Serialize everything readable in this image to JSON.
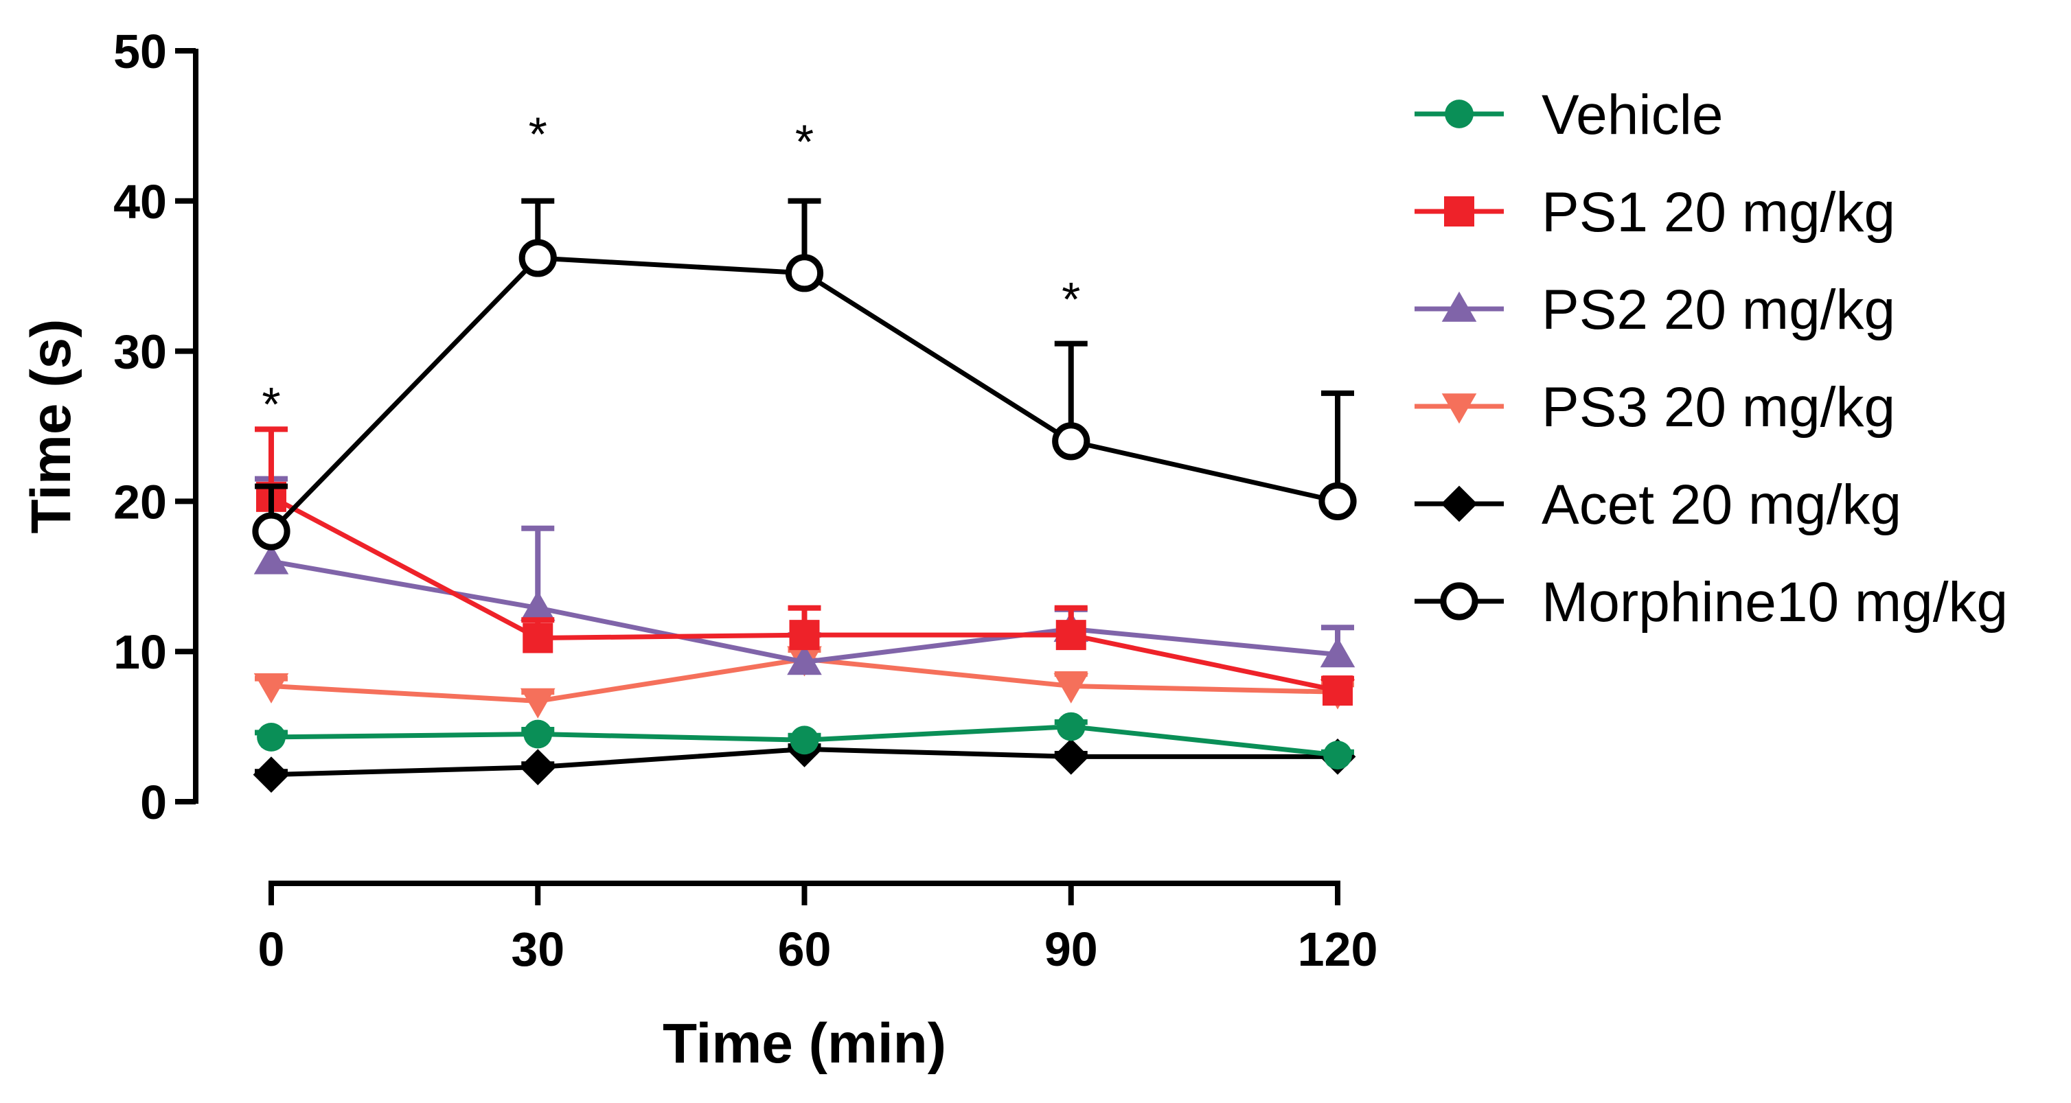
{
  "chart_data": {
    "type": "line",
    "title": "",
    "xlabel": "Time (min)",
    "ylabel": "Time (s)",
    "x": [
      0,
      30,
      60,
      90,
      120
    ],
    "xlim": [
      0,
      120
    ],
    "ylim": [
      0,
      50
    ],
    "xticks": [
      "0",
      "30",
      "60",
      "90",
      "120"
    ],
    "yticks": [
      "0",
      "10",
      "20",
      "30",
      "40",
      "50"
    ],
    "grid": false,
    "legend_position": "right",
    "series": [
      {
        "name": "Vehicle",
        "color": "#0a8f57",
        "marker": "circle-filled",
        "values": [
          4.3,
          4.5,
          4.1,
          5.0,
          3.1
        ],
        "errors": [
          0.3,
          0.3,
          0.3,
          0.3,
          0.2
        ]
      },
      {
        "name": "PS1 20 mg/kg",
        "color": "#ee2229",
        "marker": "square",
        "values": [
          20.3,
          10.9,
          11.1,
          11.1,
          7.4
        ],
        "errors": [
          4.5,
          1.2,
          1.8,
          1.8,
          0.8
        ]
      },
      {
        "name": "PS2 20 mg/kg",
        "color": "#8064a9",
        "marker": "triangle-up",
        "values": [
          16.0,
          12.9,
          9.3,
          11.5,
          9.8
        ],
        "errors": [
          5.5,
          5.3,
          1.8,
          1.3,
          1.8
        ]
      },
      {
        "name": "PS3 20 mg/kg",
        "color": "#f5705b",
        "marker": "triangle-down",
        "values": [
          7.7,
          6.7,
          9.5,
          7.7,
          7.3
        ],
        "errors": [
          0.5,
          0.6,
          0.6,
          0.8,
          0.5
        ]
      },
      {
        "name": "Acet 20 mg/kg",
        "color": "#000000",
        "marker": "diamond",
        "values": [
          1.8,
          2.3,
          3.5,
          3.0,
          3.0
        ],
        "errors": [
          0.2,
          0.2,
          0.2,
          0.2,
          0.2
        ]
      },
      {
        "name": "Morphine10 mg/kg",
        "color": "#000000",
        "marker": "circle-open",
        "values": [
          18.0,
          36.2,
          35.2,
          24.0,
          20.0
        ],
        "errors": [
          3.0,
          3.8,
          4.8,
          6.5,
          7.2
        ]
      }
    ],
    "annotations": [
      {
        "text": "*",
        "x": 0,
        "y": 26.5
      },
      {
        "text": "*",
        "x": 30,
        "y": 44.5
      },
      {
        "text": "*",
        "x": 60,
        "y": 44.0
      },
      {
        "text": "*",
        "x": 90,
        "y": 33.5
      }
    ]
  }
}
